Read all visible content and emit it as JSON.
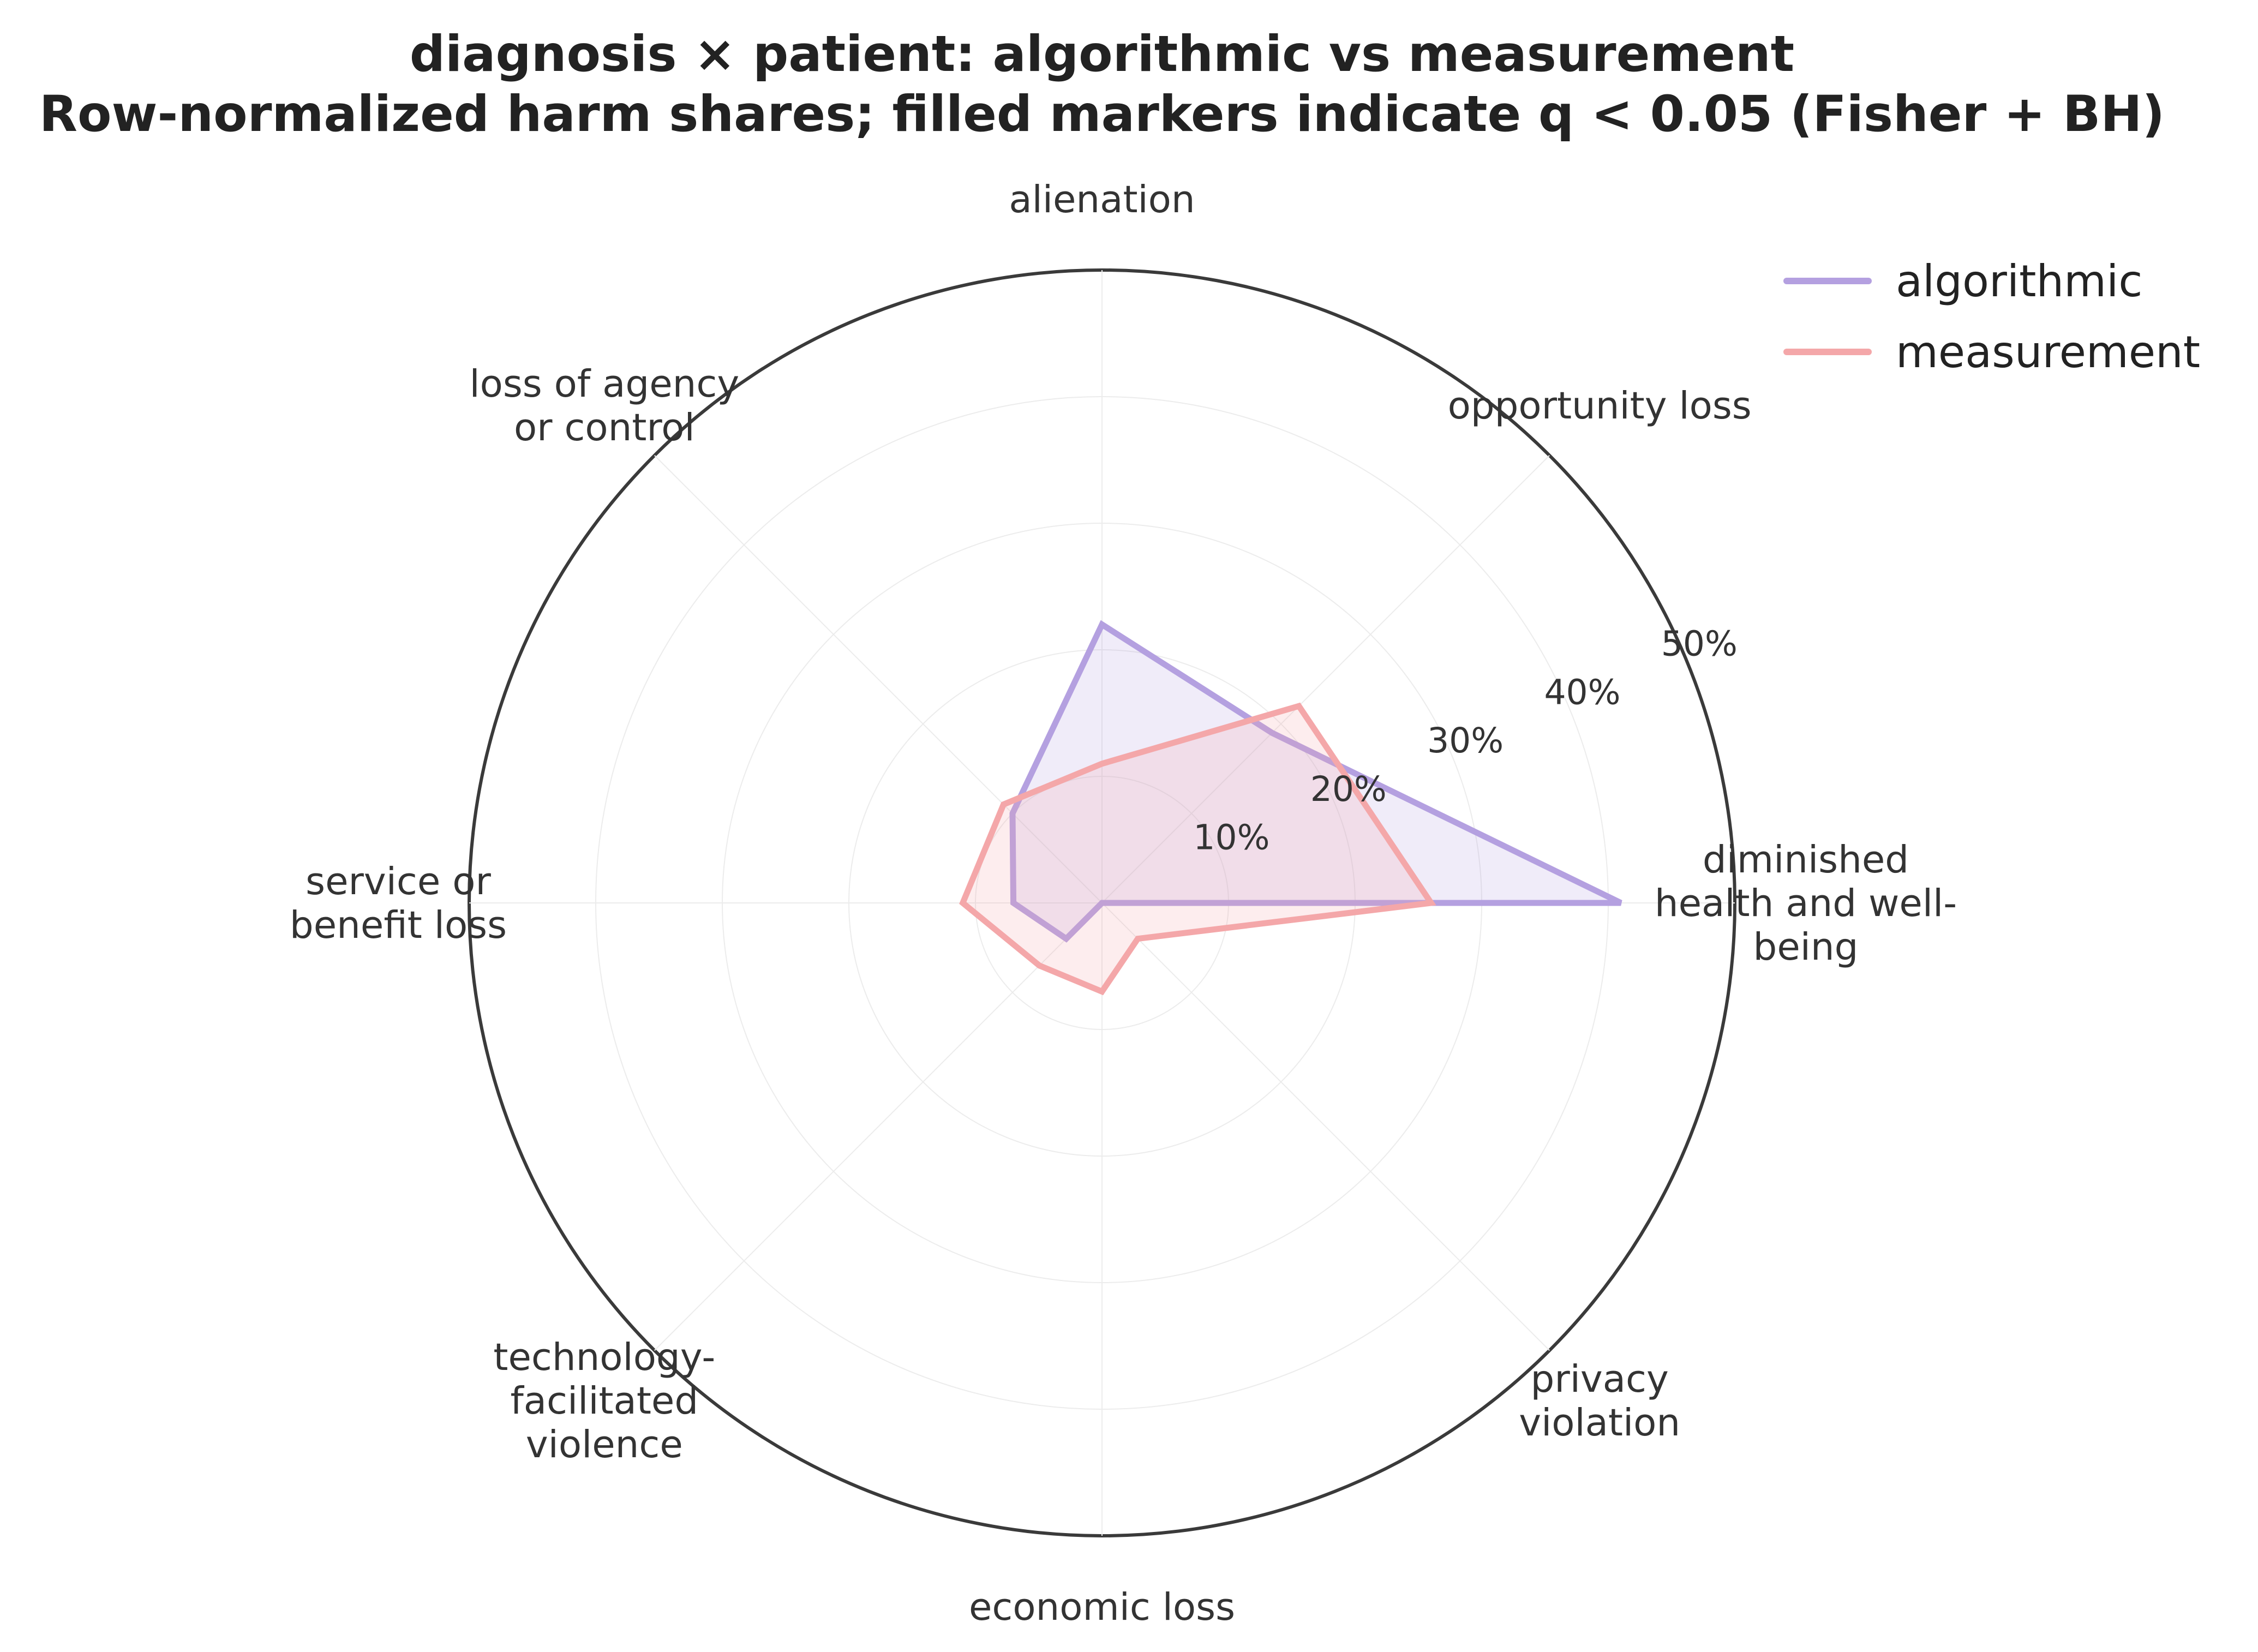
{
  "chart_data": {
    "type": "radar",
    "title": "diagnosis × patient: algorithmic vs measurement",
    "subtitle": "Row-normalized harm shares; filled markers indicate q < 0.05 (Fisher + BH)",
    "categories": [
      [
        "diminished",
        "health and well-",
        "being"
      ],
      [
        "opportunity loss"
      ],
      [
        "alienation"
      ],
      [
        "loss of agency",
        "or control"
      ],
      [
        "service or",
        "benefit loss"
      ],
      [
        "technology-",
        "facilitated",
        "violence"
      ],
      [
        "economic loss"
      ],
      [
        "privacy",
        "violation"
      ]
    ],
    "radial_ticks": [
      10,
      20,
      30,
      40,
      50
    ],
    "radial_tick_labels": [
      "10%",
      "20%",
      "30%",
      "40%",
      "50%"
    ],
    "rlim": [
      0,
      50
    ],
    "series": [
      {
        "name": "algorithmic",
        "color": "#b4a0e0",
        "values": [
          41.0,
          19.0,
          22.0,
          10.0,
          7.0,
          4.0,
          0.0,
          0.0
        ]
      },
      {
        "name": "measurement",
        "color": "#f4a7a9",
        "values": [
          26.0,
          22.0,
          11.0,
          11.0,
          11.0,
          7.0,
          7.0,
          4.0
        ]
      }
    ],
    "legend_position": "top-right",
    "grid": true
  }
}
